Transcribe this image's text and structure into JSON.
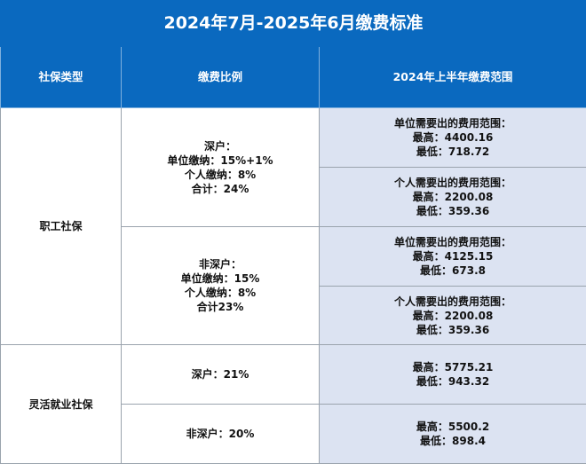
{
  "title": "2024年7月-2025年6月缴费标准",
  "headers": [
    "社保类型",
    "缴费比例",
    "2024年上半年缴费范围"
  ],
  "sections": [
    {
      "type": "职工社保",
      "groups": [
        {
          "ratio": [
            "深户：",
            "单位缴纳：15%+1%",
            "个人缴纳：8%",
            "合计：24%"
          ],
          "ranges": [
            [
              "单位需要出的费用范围：",
              "最高：4400.16",
              "最低：718.72"
            ],
            [
              "个人需要出的费用范围：",
              "最高：2200.08",
              "最低：359.36"
            ]
          ]
        },
        {
          "ratio": [
            "非深户：",
            "单位缴纳：15%",
            "个人缴纳：8%",
            "合计23%"
          ],
          "ranges": [
            [
              "单位需要出的费用范围：",
              "最高：4125.15",
              "最低：673.8"
            ],
            [
              "个人需要出的费用范围：",
              "最高：2200.08",
              "最低：359.36"
            ]
          ]
        }
      ]
    },
    {
      "type": "灵活就业社保",
      "rows": [
        {
          "ratio": "深户：21%",
          "range": [
            "最高：5775.21",
            "最低：943.32"
          ]
        },
        {
          "ratio": "非深户：20%",
          "range": [
            "最高：5500.2",
            "最低：898.4"
          ]
        }
      ]
    }
  ]
}
